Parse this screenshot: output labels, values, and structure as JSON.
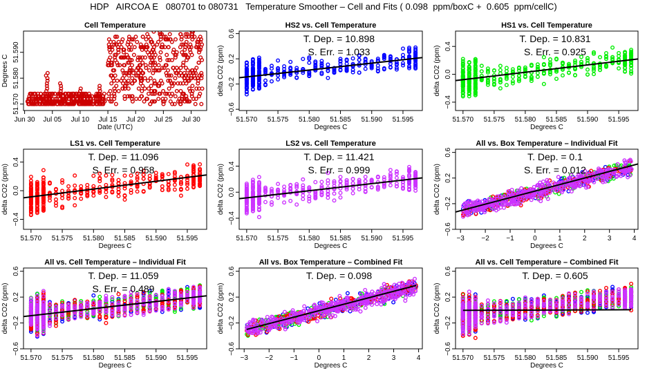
{
  "title": "HDP   AIRCOA E   080701 to 080731   Temperature Smoother – Cell and Fits ( 0.098  ppm/boxC +  0.605  ppm/cellC)",
  "colors": {
    "cell": "#cc0000",
    "HS2": "#0000ff",
    "HS1": "#00ee00",
    "LS1": "#ff0000",
    "LS2": "#cc33ff",
    "fit_line": "#000000"
  },
  "chart_data": [
    {
      "id": "cell-temperature",
      "type": "scatter",
      "title": "Cell Temperature",
      "xlabel": "Date (UTC)",
      "ylabel": "Degrees C",
      "x_unit": "days since Jun 30",
      "xlim": [
        -0.2,
        32.8
      ],
      "ylim": [
        51.5675,
        51.5982
      ],
      "xticks": [
        {
          "v": 0,
          "label": "Jun 30"
        },
        {
          "v": 5,
          "label": "Jul 05"
        },
        {
          "v": 10,
          "label": "Jul 10"
        },
        {
          "v": 15,
          "label": "Jul 15"
        },
        {
          "v": 20,
          "label": "Jul 20"
        },
        {
          "v": 25,
          "label": "Jul 25"
        },
        {
          "v": 30,
          "label": "Jul 30"
        }
      ],
      "yticks": [
        {
          "v": 51.57,
          "label": "51.570"
        },
        {
          "v": 51.58,
          "label": "51.580"
        },
        {
          "v": 51.59,
          "label": "51.590"
        }
      ],
      "series": [
        {
          "name": "cell",
          "color": "cell",
          "segments": [
            {
              "x0": 0.5,
              "x1": 14.5,
              "ymin": 51.57,
              "ymax": 51.5745
            },
            {
              "x0": 15,
              "x1": 21.5,
              "ymin": 51.57,
              "ymax": 51.597
            },
            {
              "x0": 21.5,
              "x1": 32,
              "ymin": 51.57,
              "ymax": 51.598
            }
          ],
          "peaks": [
            [
              4,
              51.582
            ],
            [
              6.5,
              51.578
            ],
            [
              10,
              51.576
            ],
            [
              13.5,
              51.577
            ]
          ]
        }
      ]
    },
    {
      "id": "hs2-vs-cell",
      "type": "scatter",
      "title": "HS2 vs. Cell Temperature",
      "xlabel": "Degrees C",
      "ylabel": "delta CO2 (ppm)",
      "xlim": [
        51.5688,
        51.5981
      ],
      "ylim": [
        -0.62,
        0.64
      ],
      "xticks": [
        51.57,
        51.575,
        51.58,
        51.585,
        51.59,
        51.595
      ],
      "yticks": [
        -0.6,
        -0.2,
        0.2,
        0.6
      ],
      "annotations": [
        "T. Dep. =  10.898",
        "S. Err. =  1.033"
      ],
      "fit": {
        "x": [
          51.5688,
          51.5981
        ],
        "y": [
          -0.1,
          0.22
        ]
      },
      "series": [
        {
          "name": "HS2",
          "color": "HS2"
        }
      ]
    },
    {
      "id": "hs1-vs-cell",
      "type": "scatter",
      "title": "HS1 vs. Cell Temperature",
      "xlabel": "Degrees C",
      "ylabel": "delta CO2 (ppm)",
      "xlim": [
        51.5688,
        51.5981
      ],
      "ylim": [
        -0.52,
        0.62
      ],
      "xticks": [
        51.57,
        51.575,
        51.58,
        51.585,
        51.59,
        51.595
      ],
      "yticks": [
        -0.4,
        0.0,
        0.4
      ],
      "annotations": [
        "T. Dep. =  10.831",
        "S. Err. =  0.925"
      ],
      "fit": {
        "x": [
          51.5688,
          51.5981
        ],
        "y": [
          -0.09,
          0.22
        ]
      },
      "series": [
        {
          "name": "HS1",
          "color": "HS1"
        }
      ]
    },
    {
      "id": "ls1-vs-cell",
      "type": "scatter",
      "title": "LS1 vs. Cell Temperature",
      "xlabel": "Degrees C",
      "ylabel": "delta CO2 (ppm)",
      "xlim": [
        51.5688,
        51.5981
      ],
      "ylim": [
        -0.54,
        0.58
      ],
      "xticks": [
        51.57,
        51.575,
        51.58,
        51.585,
        51.59,
        51.595
      ],
      "yticks": [
        -0.4,
        0.0,
        0.4
      ],
      "annotations": [
        "T. Dep. =  11.096",
        "S. Err. =  0.958"
      ],
      "fit": {
        "x": [
          51.5688,
          51.5981
        ],
        "y": [
          -0.1,
          0.22
        ]
      },
      "series": [
        {
          "name": "LS1",
          "color": "LS1"
        }
      ]
    },
    {
      "id": "ls2-vs-cell",
      "type": "scatter",
      "title": "LS2 vs. Cell Temperature",
      "xlabel": "Degrees C",
      "ylabel": "delta CO2 (ppm)",
      "xlim": [
        51.5688,
        51.5981
      ],
      "ylim": [
        -0.57,
        0.66
      ],
      "xticks": [
        51.57,
        51.575,
        51.58,
        51.585,
        51.59,
        51.595
      ],
      "yticks": [
        -0.4,
        0.0,
        0.4
      ],
      "annotations": [
        "T. Dep. =  11.421",
        "S. Err. =  0.999"
      ],
      "fit": {
        "x": [
          51.5688,
          51.5981
        ],
        "y": [
          -0.1,
          0.22
        ]
      },
      "series": [
        {
          "name": "LS2",
          "color": "LS2"
        }
      ]
    },
    {
      "id": "all-vs-box-individual",
      "type": "scatter",
      "title": "All vs. Box Temperature – Individual Fit",
      "xlabel": "Degrees C",
      "ylabel": "delta CO2 (ppm)",
      "xlim": [
        -3.2,
        4.15
      ],
      "ylim": [
        -0.6,
        0.65
      ],
      "xticks": [
        -3,
        -2,
        -1,
        0,
        1,
        2,
        3,
        4
      ],
      "yticks": [
        -0.6,
        -0.2,
        0.2,
        0.6
      ],
      "annotations": [
        "T. Dep. =  0.1",
        "S. Err. =  0.012"
      ],
      "fit": {
        "x": [
          -3.2,
          4.15
        ],
        "y": [
          -0.33,
          0.42
        ]
      },
      "series": [
        {
          "name": "HS2",
          "color": "HS2"
        },
        {
          "name": "HS1",
          "color": "HS1"
        },
        {
          "name": "LS1",
          "color": "LS1"
        },
        {
          "name": "LS2",
          "color": "LS2"
        }
      ]
    },
    {
      "id": "all-vs-cell-individual",
      "type": "scatter",
      "title": "All vs. Cell Temperature – Individual Fit",
      "xlabel": "Degrees C",
      "ylabel": "delta CO2 (ppm)",
      "xlim": [
        51.5688,
        51.5981
      ],
      "ylim": [
        -0.6,
        0.65
      ],
      "xticks": [
        51.57,
        51.575,
        51.58,
        51.585,
        51.59,
        51.595
      ],
      "yticks": [
        -0.6,
        -0.2,
        0.2,
        0.6
      ],
      "annotations": [
        "T. Dep. =  11.059",
        "S. Err. =  0.489"
      ],
      "fit": {
        "x": [
          51.5688,
          51.5981
        ],
        "y": [
          -0.1,
          0.22
        ]
      },
      "series": [
        {
          "name": "HS2",
          "color": "HS2"
        },
        {
          "name": "HS1",
          "color": "HS1"
        },
        {
          "name": "LS1",
          "color": "LS1"
        },
        {
          "name": "LS2",
          "color": "LS2"
        }
      ]
    },
    {
      "id": "all-vs-box-combined",
      "type": "scatter",
      "title": "All vs. Box Temperature – Combined Fit",
      "xlabel": "Degrees C",
      "ylabel": "delta CO2 (ppm)",
      "xlim": [
        -3.2,
        4.15
      ],
      "ylim": [
        -0.6,
        0.65
      ],
      "xticks": [
        -3,
        -2,
        -1,
        0,
        1,
        2,
        3,
        4
      ],
      "yticks": [
        -0.6,
        -0.2,
        0.2,
        0.6
      ],
      "annotations": [
        "T. Dep. =  0.098"
      ],
      "fit": {
        "x": [
          -2.9,
          3.9
        ],
        "y": [
          -0.3,
          0.38
        ]
      },
      "series": [
        {
          "name": "HS2",
          "color": "HS2"
        },
        {
          "name": "HS1",
          "color": "HS1"
        },
        {
          "name": "LS1",
          "color": "LS1"
        },
        {
          "name": "LS2",
          "color": "LS2"
        }
      ]
    },
    {
      "id": "all-vs-cell-combined",
      "type": "scatter",
      "title": "All vs. Cell Temperature – Combined Fit",
      "xlabel": "Degrees C",
      "ylabel": "delta CO2 (ppm)",
      "xlim": [
        51.5688,
        51.5981
      ],
      "ylim": [
        -0.6,
        0.65
      ],
      "xticks": [
        51.57,
        51.575,
        51.58,
        51.585,
        51.59,
        51.595
      ],
      "yticks": [
        -0.6,
        -0.2,
        0.2,
        0.6
      ],
      "annotations": [
        "T. Dep. =  0.605"
      ],
      "fit": {
        "x": [
          51.57,
          51.597
        ],
        "y": [
          -0.005,
          0.005
        ]
      },
      "series": [
        {
          "name": "HS2",
          "color": "HS2"
        },
        {
          "name": "HS1",
          "color": "HS1"
        },
        {
          "name": "LS1",
          "color": "LS1"
        },
        {
          "name": "LS2",
          "color": "LS2"
        }
      ]
    }
  ]
}
